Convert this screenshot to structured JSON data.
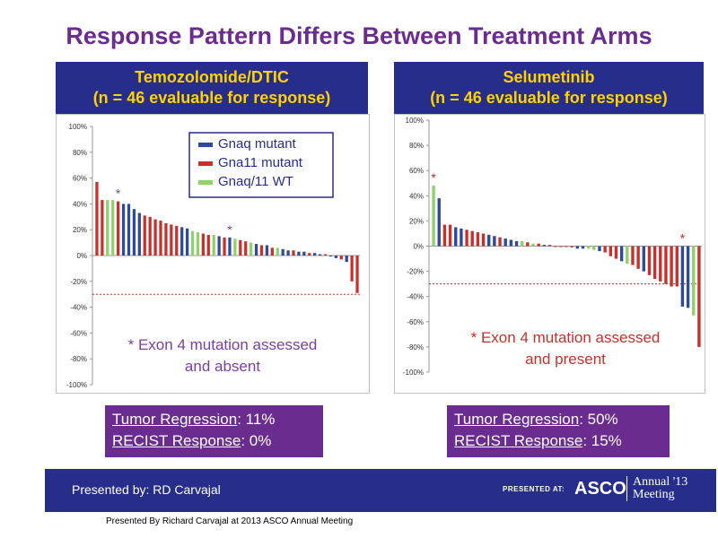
{
  "slide": {
    "title": "Response Pattern Differs Between Treatment Arms",
    "footer_presented": "Presented by: RD Carvajal",
    "footer_presented_at": "PRESENTED AT:",
    "footer_asco": "ASCO",
    "footer_annual": "Annual '13",
    "footer_meeting": "Meeting",
    "credit": "Presented By Richard Carvajal at 2013 ASCO Annual Meeting"
  },
  "left_panel": {
    "heading_line1": "Temozolomide/DTIC",
    "heading_line2": "(n = 46 evaluable for response)",
    "stat1_label": "Tumor Regression",
    "stat1_value": ":  11%",
    "stat2_label": "RECIST Response",
    "stat2_value": ":  0%"
  },
  "right_panel": {
    "heading_line1": "Selumetinib",
    "heading_line2": "(n = 46 evaluable for response)",
    "stat1_label": "Tumor Regression",
    "stat1_value": ":  50%",
    "stat2_label": "RECIST Response",
    "stat2_value": ":  15%"
  },
  "colors": {
    "gnaq": "#2f4a9a",
    "gna11": "#c9302c",
    "wt": "#8fd16a",
    "left_star": "#7b3fa0",
    "right_star": "#d62020",
    "threshold": "#d62020"
  },
  "chart_data": [
    {
      "type": "bar",
      "title": "Temozolomide/DTIC",
      "ylim": [
        -100,
        100
      ],
      "yticks": [
        "100%",
        "80%",
        "60%",
        "40%",
        "20%",
        "0%",
        "-20%",
        "-40%",
        "-60%",
        "-80%",
        "-100%"
      ],
      "threshold": -30,
      "legend": [
        {
          "key": "gnaq",
          "label": "Gnaq mutant"
        },
        {
          "key": "gna11",
          "label": "Gna11 mutant"
        },
        {
          "key": "wt",
          "label": "Gnaq/11 WT"
        }
      ],
      "legend_position": "top-right",
      "annotation_mark": "*",
      "annotation_line1": "Exon 4 mutation assessed",
      "annotation_line2": "and absent",
      "star_positions": [
        4,
        25
      ],
      "values": [
        57,
        43,
        43,
        43,
        42,
        40,
        40,
        36,
        33,
        31,
        30,
        28,
        27,
        25,
        24,
        23,
        22,
        21,
        19,
        18,
        17,
        16,
        16,
        15,
        14,
        14,
        13,
        12,
        11,
        10,
        9,
        8,
        8,
        6,
        6,
        5,
        4,
        4,
        3,
        3,
        2,
        2,
        1,
        1,
        0,
        -2,
        -3,
        -5,
        -20,
        -29
      ],
      "types": [
        "gna11",
        "gna11",
        "wt",
        "wt",
        "gna11",
        "gnaq",
        "gnaq",
        "gnaq",
        "gnaq",
        "gna11",
        "gna11",
        "gna11",
        "gna11",
        "gna11",
        "gna11",
        "gna11",
        "gnaq",
        "gnaq",
        "wt",
        "wt",
        "gna11",
        "gna11",
        "wt",
        "gnaq",
        "gna11",
        "gnaq",
        "wt",
        "gna11",
        "gna11",
        "wt",
        "gnaq",
        "gna11",
        "gnaq",
        "gna11",
        "wt",
        "gnaq",
        "gnaq",
        "gna11",
        "gnaq",
        "gnaq",
        "gna11",
        "gnaq",
        "gnaq",
        "gna11",
        "gnaq",
        "gnaq",
        "gna11",
        "gnaq",
        "gna11",
        "gna11"
      ]
    },
    {
      "type": "bar",
      "title": "Selumetinib",
      "ylim": [
        -100,
        100
      ],
      "yticks": [
        "100%",
        "80%",
        "60%",
        "40%",
        "20%",
        "0%",
        "-20%",
        "-40%",
        "-60%",
        "-80%",
        "-100%"
      ],
      "threshold": -30,
      "annotation_mark": "*",
      "annotation_line1": "Exon 4 mutation assessed",
      "annotation_line2": "and present",
      "star_positions": [
        0,
        45
      ],
      "values": [
        48,
        38,
        17,
        17,
        15,
        14,
        13,
        12,
        11,
        10,
        9,
        8,
        7,
        6,
        5,
        4,
        4,
        3,
        2,
        2,
        1,
        1,
        0,
        0,
        0,
        -1,
        -2,
        -2,
        -2,
        -3,
        -4,
        -5,
        -8,
        -10,
        -12,
        -14,
        -15,
        -18,
        -20,
        -23,
        -26,
        -28,
        -30,
        -32,
        -32,
        -48,
        -49,
        -55,
        -80
      ],
      "types": [
        "wt",
        "gnaq",
        "gna11",
        "gna11",
        "gnaq",
        "gnaq",
        "gna11",
        "gna11",
        "gna11",
        "gna11",
        "gnaq",
        "gnaq",
        "gna11",
        "gnaq",
        "gnaq",
        "gnaq",
        "wt",
        "gna11",
        "wt",
        "gna11",
        "gnaq",
        "gna11",
        "gna11",
        "gna11",
        "gna11",
        "gna11",
        "gnaq",
        "gnaq",
        "wt",
        "wt",
        "gnaq",
        "gna11",
        "gna11",
        "gna11",
        "gnaq",
        "wt",
        "gna11",
        "gna11",
        "gnaq",
        "gna11",
        "gna11",
        "gna11",
        "gna11",
        "gna11",
        "gna11",
        "gnaq",
        "gnaq",
        "wt",
        "gna11"
      ]
    }
  ]
}
